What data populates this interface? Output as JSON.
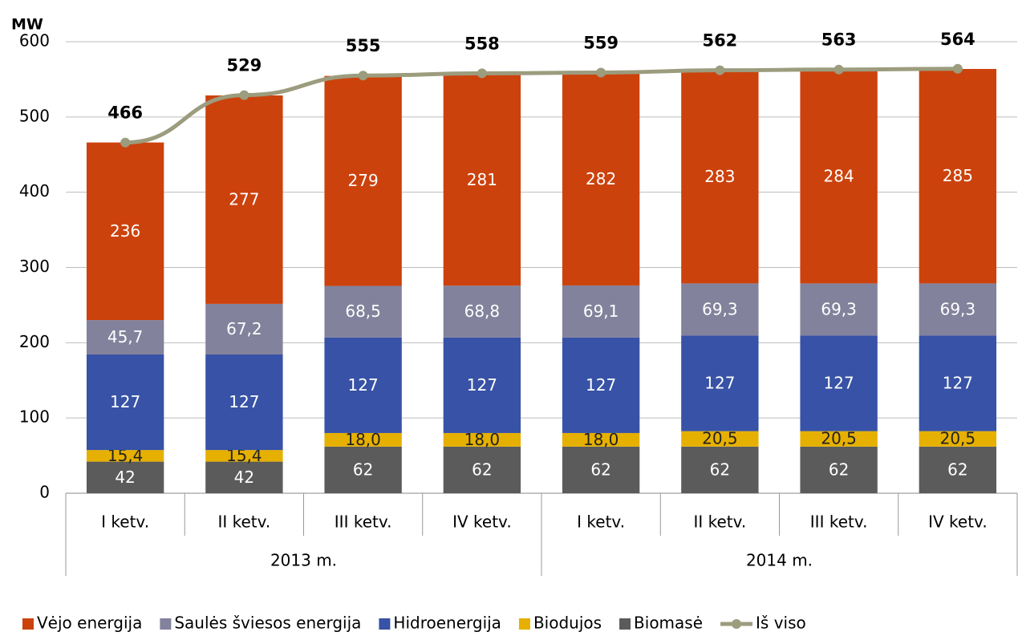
{
  "chart_data": {
    "type": "stacked-bar-line",
    "ylabel": "MW",
    "groups": [
      {
        "label": "2013 m.",
        "categories": [
          "I ketv.",
          "II ketv.",
          "III ketv.",
          "IV ketv."
        ]
      },
      {
        "label": "2014 m.",
        "categories": [
          "I ketv.",
          "II ketv.",
          "III ketv.",
          "IV ketv."
        ]
      }
    ],
    "ylim": [
      0,
      600
    ],
    "yticks": [
      0,
      100,
      200,
      300,
      400,
      500,
      600
    ],
    "grid": true,
    "legend": "bottom",
    "series": [
      {
        "name": "Biomasė",
        "type": "bar",
        "color": "#5b5b5b",
        "label_color": "#ffffff",
        "values": [
          42,
          42,
          62,
          62,
          62,
          62,
          62,
          62
        ]
      },
      {
        "name": "Biodujos",
        "type": "bar",
        "color": "#e6b000",
        "label_color": "#222222",
        "values": [
          15.4,
          15.4,
          18,
          18,
          18,
          20.5,
          20.5,
          20.5
        ],
        "value_labels": [
          "15,4",
          "15,4",
          "18,0",
          "18,0",
          "18,0",
          "20,5",
          "20,5",
          "20,5"
        ]
      },
      {
        "name": "Hidroenergija",
        "type": "bar",
        "color": "#3752a6",
        "label_color": "#ffffff",
        "values": [
          127,
          127,
          127,
          127,
          127,
          127,
          127,
          127
        ]
      },
      {
        "name": "Saulės šviesos energija",
        "type": "bar",
        "color": "#82829c",
        "label_color": "#ffffff",
        "values": [
          45.7,
          67.2,
          68.5,
          68.8,
          69.1,
          69.3,
          69.3,
          69.3
        ],
        "value_labels": [
          "45,7",
          "67,2",
          "68,5",
          "68,8",
          "69,1",
          "69,3",
          "69,3",
          "69,3"
        ]
      },
      {
        "name": "Vėjo energija",
        "type": "bar",
        "color": "#cc420c",
        "label_color": "#ffffff",
        "values": [
          236,
          277,
          279,
          281,
          282,
          283,
          284,
          285
        ]
      },
      {
        "name": "Iš viso",
        "type": "line",
        "color": "#9c9c7e",
        "label_color": "#000000",
        "values": [
          466,
          529,
          555,
          558,
          559,
          562,
          563,
          564
        ]
      }
    ]
  }
}
